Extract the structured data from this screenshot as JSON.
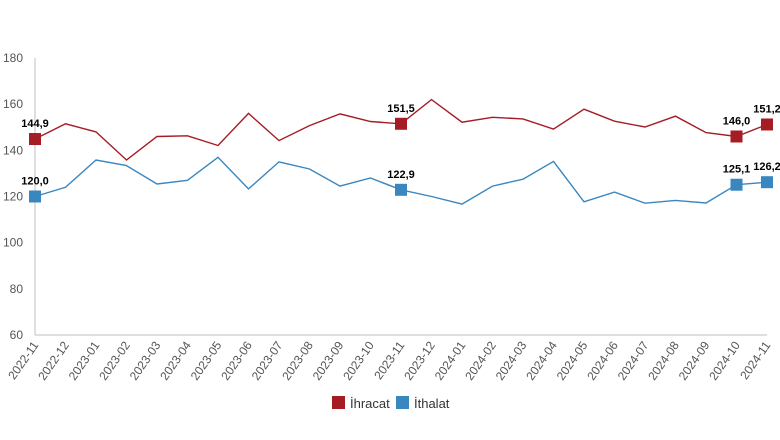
{
  "chart_data": {
    "type": "line",
    "categories": [
      "2022-11",
      "2022-12",
      "2023-01",
      "2023-02",
      "2023-03",
      "2023-04",
      "2023-05",
      "2023-06",
      "2023-07",
      "2023-08",
      "2023-09",
      "2023-10",
      "2023-11",
      "2023-12",
      "2024-01",
      "2024-02",
      "2024-03",
      "2024-04",
      "2024-05",
      "2024-06",
      "2024-07",
      "2024-08",
      "2024-09",
      "2024-10",
      "2024-11"
    ],
    "series": [
      {
        "name": "İhracat",
        "color": "#a51c24",
        "values": [
          144.9,
          151.5,
          148.0,
          135.8,
          146.0,
          146.3,
          142.1,
          156.0,
          144.2,
          150.7,
          155.8,
          152.5,
          151.5,
          162.0,
          152.2,
          154.3,
          153.6,
          149.2,
          157.8,
          152.6,
          150.1,
          154.8,
          147.7,
          146.0,
          151.2
        ],
        "labels": [
          {
            "index": 0,
            "text": "144,9"
          },
          {
            "index": 12,
            "text": "151,5"
          },
          {
            "index": 23,
            "text": "146,0"
          },
          {
            "index": 24,
            "text": "151,2"
          }
        ]
      },
      {
        "name": "İthalat",
        "color": "#3a87c0",
        "values": [
          120.0,
          124.0,
          135.8,
          133.4,
          125.4,
          127.0,
          137.0,
          123.3,
          135.0,
          131.9,
          124.5,
          128.0,
          122.9,
          120.0,
          116.7,
          124.5,
          127.5,
          135.2,
          117.7,
          121.9,
          117.1,
          118.3,
          117.2,
          125.1,
          126.2
        ],
        "labels": [
          {
            "index": 0,
            "text": "120,0"
          },
          {
            "index": 12,
            "text": "122,9"
          },
          {
            "index": 23,
            "text": "125,1"
          },
          {
            "index": 24,
            "text": "126,2"
          }
        ]
      }
    ],
    "ylim": [
      60,
      180
    ],
    "yticks": [
      60,
      80,
      100,
      120,
      140,
      160,
      180
    ],
    "grid": false,
    "legend": "bottom-center",
    "title": "",
    "xlabel": "",
    "ylabel": ""
  }
}
